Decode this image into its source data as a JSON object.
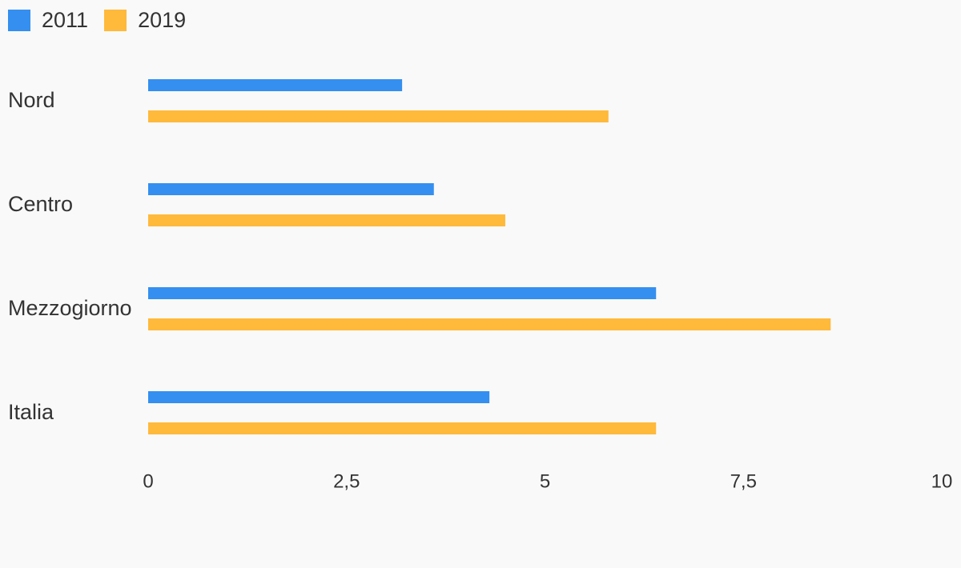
{
  "legend": [
    {
      "label": "2011",
      "color": "#348ff0"
    },
    {
      "label": "2019",
      "color": "#ffb93b"
    }
  ],
  "chart_data": {
    "type": "bar",
    "orientation": "horizontal",
    "categories": [
      "Nord",
      "Centro",
      "Mezzogiorno",
      "Italia"
    ],
    "series": [
      {
        "name": "2011",
        "color": "#348ff0",
        "values": [
          3.2,
          3.6,
          6.4,
          4.3
        ]
      },
      {
        "name": "2019",
        "color": "#ffb93b",
        "values": [
          5.8,
          4.5,
          8.6,
          6.4
        ]
      }
    ],
    "xlim": [
      0,
      10
    ],
    "xticks": [
      0,
      2.5,
      5,
      7.5,
      10
    ],
    "xtick_labels": [
      "0",
      "2,5",
      "5",
      "7,5",
      "10"
    ],
    "grid": false,
    "legend_position": "top-left",
    "title": "",
    "xlabel": "",
    "ylabel": ""
  }
}
